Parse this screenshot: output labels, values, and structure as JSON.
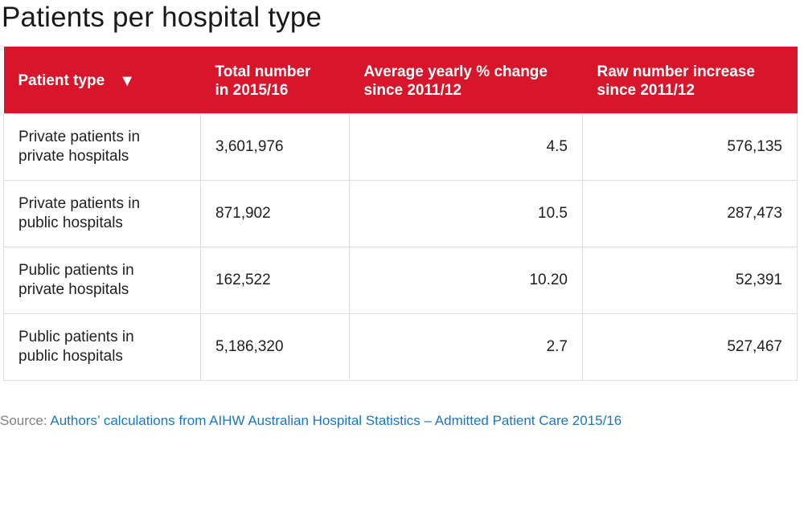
{
  "title": "Patients per hospital type",
  "header": {
    "col1": "Patient type",
    "sort_icon": "▼",
    "col2_line1": "Total number",
    "col2_line2": "in 2015/16",
    "col3_line1": "Average yearly % change",
    "col3_line2": "since 2011/12",
    "col4_line1": "Raw number increase",
    "col4_line2": "since 2011/12"
  },
  "chart_data": {
    "type": "table",
    "title": "Patients per hospital type",
    "columns": [
      "Patient type",
      "Total number in 2015/16",
      "Average yearly % change since 2011/12",
      "Raw number increase since 2011/12"
    ],
    "rows": [
      {
        "label_line1": "Private patients in",
        "label_line2": "private hospitals",
        "total": "3,601,976",
        "avg_change": "4.5",
        "raw_increase": "576,135"
      },
      {
        "label_line1": "Private patients in",
        "label_line2": "public hospitals",
        "total": "871,902",
        "avg_change": "10.5",
        "raw_increase": "287,473"
      },
      {
        "label_line1": "Public patients in",
        "label_line2": "private hospitals",
        "total": "162,522",
        "avg_change": "10.20",
        "raw_increase": "52,391"
      },
      {
        "label_line1": "Public patients in",
        "label_line2": "public hospitals",
        "total": "5,186,320",
        "avg_change": "2.7",
        "raw_increase": "527,467"
      }
    ]
  },
  "source": {
    "prefix": "Source: ",
    "link_text": "Authors’ calculations from AIHW Australian Hospital Statistics – Admitted Patient Care 2015/16"
  },
  "colors": {
    "header_background": "#d8152a",
    "link": "#1a76c2"
  }
}
